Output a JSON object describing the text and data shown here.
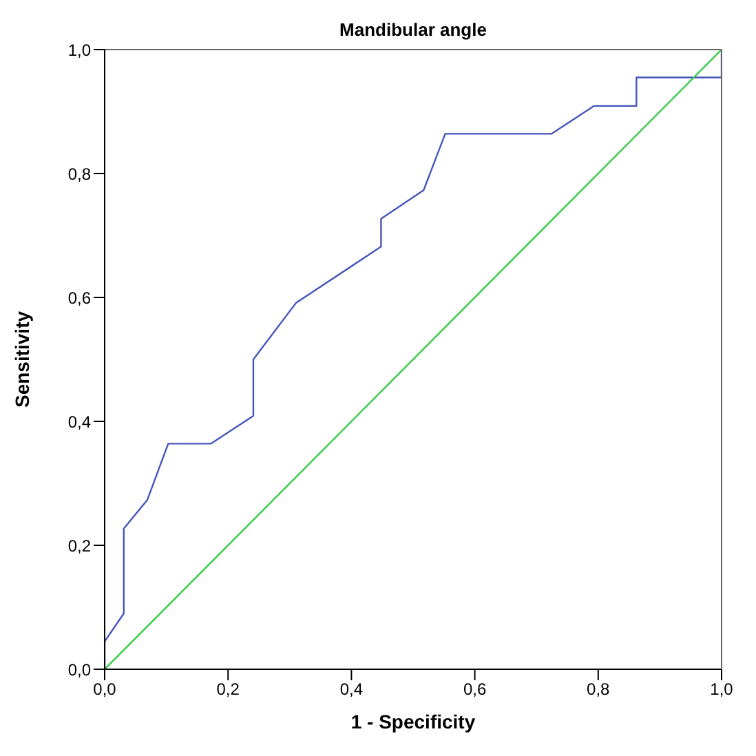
{
  "chart_data": {
    "type": "line",
    "title": "Mandibular angle",
    "xlabel": "1 - Specificity",
    "ylabel": "Sensitivity",
    "xlim": [
      0,
      1
    ],
    "ylim": [
      0,
      1
    ],
    "xticks": [
      {
        "value": 0,
        "label": "0,0"
      },
      {
        "value": 0.2,
        "label": "0,2"
      },
      {
        "value": 0.4,
        "label": "0,4"
      },
      {
        "value": 0.6,
        "label": "0,6"
      },
      {
        "value": 0.8,
        "label": "0,8"
      },
      {
        "value": 1,
        "label": "1,0"
      }
    ],
    "yticks": [
      {
        "value": 0,
        "label": "0,0"
      },
      {
        "value": 0.2,
        "label": "0,2"
      },
      {
        "value": 0.4,
        "label": "0,4"
      },
      {
        "value": 0.6,
        "label": "0,6"
      },
      {
        "value": 0.8,
        "label": "0,8"
      },
      {
        "value": 1,
        "label": "1,0"
      }
    ],
    "marker": "none",
    "line_style": "solid",
    "series": [
      {
        "color": "#4455bb",
        "x": [
          0,
          0,
          0.031,
          0.031,
          0.069,
          0.103,
          0.172,
          0.241,
          0.241,
          0.31,
          0.448,
          0.448,
          0.517,
          0.552,
          0.724,
          0.793,
          0.862,
          0.862,
          1,
          1
        ],
        "values": [
          0,
          0.045,
          0.09,
          0.227,
          0.273,
          0.364,
          0.364,
          0.409,
          0.5,
          0.591,
          0.682,
          0.727,
          0.773,
          0.864,
          0.864,
          0.909,
          0.909,
          0.955,
          0.955,
          1
        ]
      },
      {
        "color": "#33cc44",
        "x": [
          0,
          1
        ],
        "values": [
          0,
          1
        ]
      }
    ]
  }
}
